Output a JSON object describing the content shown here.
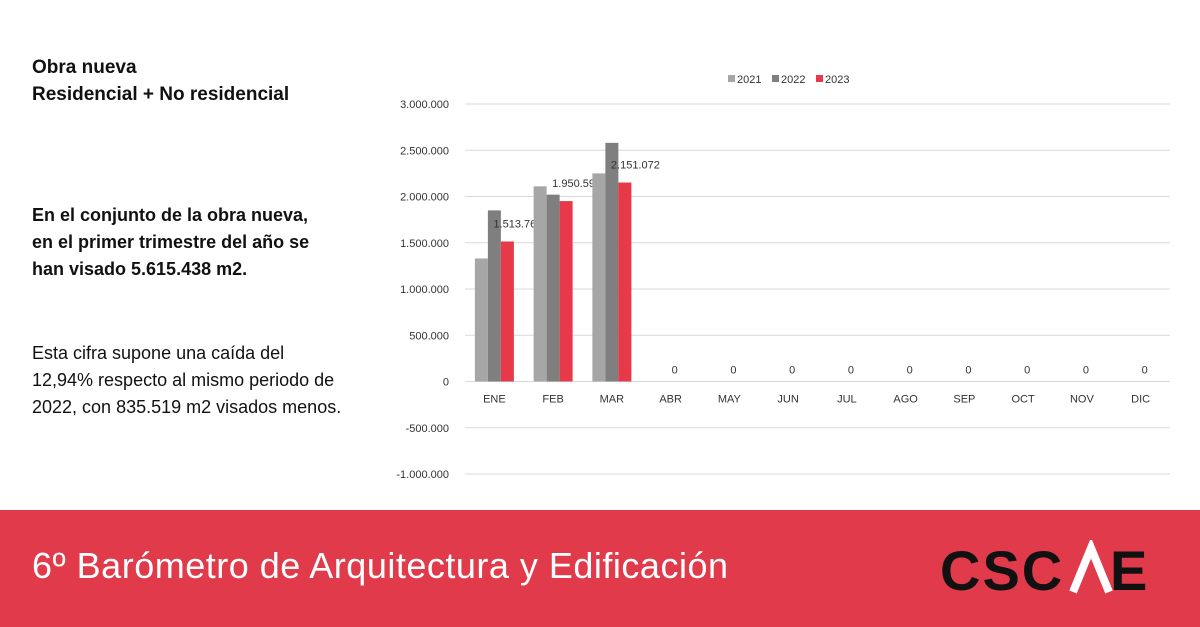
{
  "text": {
    "title_line1": "Obra nueva",
    "title_line2": "Residencial + No residencial",
    "bold_paragraph": "En el conjunto de la obra nueva, en el primer trimestre del año se han visado 5.615.438 m2.",
    "paragraph": "Esta cifra supone una caída del 12,94% respecto al mismo periodo de 2022, con 835.519 m2 visados menos."
  },
  "banner": {
    "text": "6º Barómetro de Arquitectura y Edificación",
    "logo_text": "CSCAE",
    "color": "#e13a4a"
  },
  "chart_data": {
    "type": "bar",
    "categories": [
      "ENE",
      "FEB",
      "MAR",
      "ABR",
      "MAY",
      "JUN",
      "JUL",
      "AGO",
      "SEP",
      "OCT",
      "NOV",
      "DIC"
    ],
    "series": [
      {
        "name": "2021",
        "color": "#a6a6a6",
        "values": [
          1330000,
          2110000,
          2250000,
          null,
          null,
          null,
          null,
          null,
          null,
          null,
          null,
          null
        ]
      },
      {
        "name": "2022",
        "color": "#7f7f7f",
        "values": [
          1850000,
          2020000,
          2580000,
          null,
          null,
          null,
          null,
          null,
          null,
          null,
          null,
          null
        ]
      },
      {
        "name": "2023",
        "color": "#e8394a",
        "values": [
          1513767,
          1950599,
          2151072,
          0,
          0,
          0,
          0,
          0,
          0,
          0,
          0,
          0
        ]
      }
    ],
    "data_labels_2023": [
      "1.513.767",
      "1.950.599",
      "2.151.072",
      "0",
      "0",
      "0",
      "0",
      "0",
      "0",
      "0",
      "0",
      "0"
    ],
    "yticks": [
      "3.000.000",
      "2.500.000",
      "2.000.000",
      "1.500.000",
      "1.000.000",
      "500.000",
      "0",
      "-500.000",
      "-1.000.000"
    ],
    "ylim": [
      -1000000,
      3000000
    ],
    "legend_position": "top",
    "grid": true
  }
}
